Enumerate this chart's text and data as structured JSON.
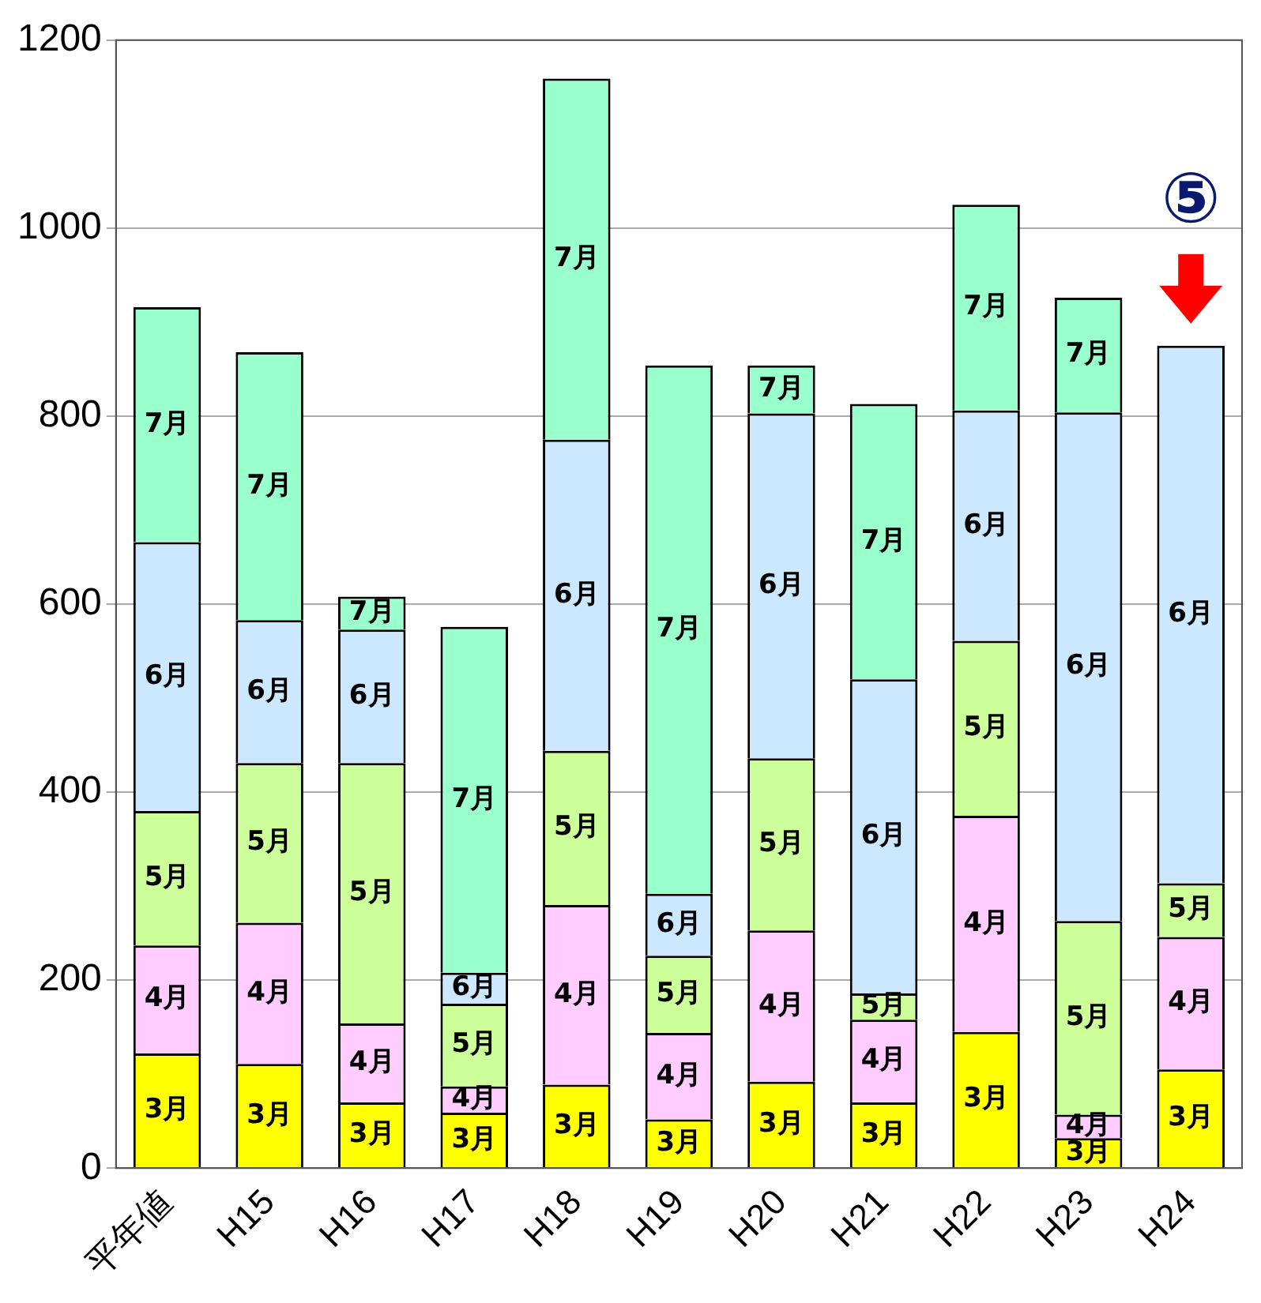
{
  "chart_data": {
    "type": "bar",
    "stacked": true,
    "categories": [
      "平年値",
      "H15",
      "H16",
      "H17",
      "H18",
      "H19",
      "H20",
      "H21",
      "H22",
      "H23",
      "H24"
    ],
    "series": [
      {
        "name": "3月",
        "color": "#ffff00",
        "values": [
          122,
          111,
          70,
          59,
          89,
          52,
          92,
          70,
          145,
          32,
          105
        ]
      },
      {
        "name": "4月",
        "color": "#ffccff",
        "values": [
          115,
          150,
          84,
          28,
          191,
          92,
          161,
          88,
          230,
          25,
          141
        ]
      },
      {
        "name": "5月",
        "color": "#ccff99",
        "values": [
          143,
          170,
          277,
          88,
          164,
          82,
          183,
          28,
          186,
          206,
          57
        ]
      },
      {
        "name": "6月",
        "color": "#cce8ff",
        "values": [
          286,
          152,
          142,
          33,
          331,
          66,
          367,
          334,
          245,
          541,
          572
        ]
      },
      {
        "name": "7月",
        "color": "#99ffcc",
        "values": [
          250,
          285,
          35,
          368,
          384,
          562,
          51,
          293,
          219,
          122,
          null
        ]
      }
    ],
    "ylim": [
      0,
      1200
    ],
    "yticks": [
      0,
      200,
      400,
      600,
      800,
      1000,
      1200
    ],
    "grid": "y",
    "legend": false,
    "annotations": [
      {
        "text": "⑤",
        "x": "H24",
        "y": 875
      }
    ]
  }
}
